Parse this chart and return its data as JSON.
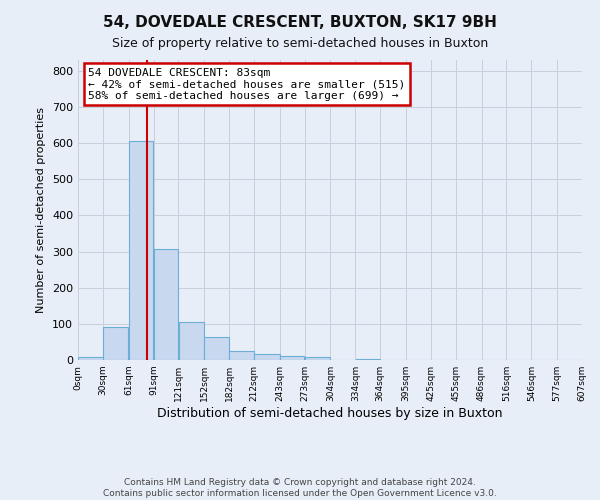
{
  "title": "54, DOVEDALE CRESCENT, BUXTON, SK17 9BH",
  "subtitle": "Size of property relative to semi-detached houses in Buxton",
  "xlabel": "Distribution of semi-detached houses by size in Buxton",
  "ylabel": "Number of semi-detached properties",
  "footer_line1": "Contains HM Land Registry data © Crown copyright and database right 2024.",
  "footer_line2": "Contains public sector information licensed under the Open Government Licence v3.0.",
  "annotation_line1": "54 DOVEDALE CRESCENT: 83sqm",
  "annotation_line2": "← 42% of semi-detached houses are smaller (515)",
  "annotation_line3": "58% of semi-detached houses are larger (699) →",
  "bar_edges": [
    0,
    30,
    61,
    91,
    121,
    152,
    182,
    212,
    243,
    273,
    304,
    334,
    364,
    395,
    425,
    455,
    486,
    516,
    546,
    577,
    607
  ],
  "bar_heights": [
    7,
    90,
    605,
    308,
    106,
    63,
    25,
    17,
    12,
    7,
    0,
    4,
    0,
    0,
    0,
    0,
    0,
    0,
    0,
    0
  ],
  "bar_color": "#c8d8ee",
  "bar_edge_color": "#6baed6",
  "property_size": 83,
  "vline_color": "#cc0000",
  "ylim": [
    0,
    830
  ],
  "yticks": [
    0,
    100,
    200,
    300,
    400,
    500,
    600,
    700,
    800
  ],
  "tick_labels": [
    "0sqm",
    "30sqm",
    "61sqm",
    "91sqm",
    "121sqm",
    "152sqm",
    "182sqm",
    "212sqm",
    "243sqm",
    "273sqm",
    "304sqm",
    "334sqm",
    "364sqm",
    "395sqm",
    "425sqm",
    "455sqm",
    "486sqm",
    "516sqm",
    "546sqm",
    "577sqm",
    "607sqm"
  ],
  "grid_color": "#c8d0dc",
  "bg_color": "#e8eef8",
  "plot_bg_color": "#e8eef8",
  "annotation_box_color": "#ffffff",
  "annotation_border_color": "#cc0000",
  "title_fontsize": 11,
  "subtitle_fontsize": 9,
  "ylabel_fontsize": 8,
  "xlabel_fontsize": 9,
  "footer_fontsize": 6.5
}
